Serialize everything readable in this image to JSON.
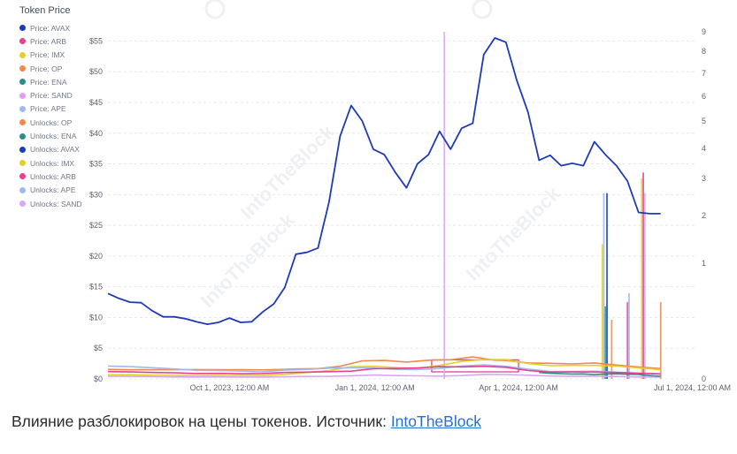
{
  "caption": {
    "text": "Влияние разблокировок на цены токенов. Источник: ",
    "link_text": "IntoTheBlock"
  },
  "watermark": {
    "text": "IntoTheBlock"
  },
  "chart_data": {
    "type": "line",
    "legend_title": "Token Price",
    "legend": [
      {
        "name": "Price: AVAX",
        "color": "#1f3bb3"
      },
      {
        "name": "Price: ARB",
        "color": "#e8408f"
      },
      {
        "name": "Price: IMX",
        "color": "#e3d12a"
      },
      {
        "name": "Price: OP",
        "color": "#f08a4b"
      },
      {
        "name": "Price: ENA",
        "color": "#2a8f8a"
      },
      {
        "name": "Price: SAND",
        "color": "#e39af0"
      },
      {
        "name": "Price: APE",
        "color": "#9fb8f0"
      },
      {
        "name": "Unlocks: OP",
        "color": "#f08a4b"
      },
      {
        "name": "Unlocks: ENA",
        "color": "#2a8f8a"
      },
      {
        "name": "Unlocks: AVAX",
        "color": "#1f3bb3"
      },
      {
        "name": "Unlocks: IMX",
        "color": "#e3d12a"
      },
      {
        "name": "Unlocks: ARB",
        "color": "#e8408f"
      },
      {
        "name": "Unlocks: APE",
        "color": "#9fb8f0"
      },
      {
        "name": "Unlocks: SAND",
        "color": "#d9a6f2"
      }
    ],
    "y_left": {
      "ticks": [
        0,
        5,
        10,
        15,
        20,
        25,
        30,
        35,
        40,
        45,
        50,
        55
      ],
      "tick_labels": [
        "$0",
        "$5",
        "$10",
        "$15",
        "$20",
        "$25",
        "$30",
        "$35",
        "$40",
        "$45",
        "$50",
        "$55"
      ],
      "domain": [
        0,
        56.5
      ]
    },
    "y_right": {
      "ticks": [
        0,
        1,
        2,
        3,
        4,
        5,
        6,
        7,
        8,
        9
      ],
      "tick_labels": [
        "0",
        "1",
        "2",
        "3",
        "4",
        "5",
        "6",
        "7",
        "8",
        "9"
      ],
      "scale": "log",
      "domain": [
        0,
        9
      ]
    },
    "x_axis": {
      "domain": [
        "2023-07-16",
        "2024-07-22"
      ],
      "ticks": [
        "2023-10-01",
        "2024-01-01",
        "2024-04-01",
        "2024-07-01"
      ],
      "tick_labels": [
        "Oct 1, 2023, 12:00 AM",
        "Jan 1, 2024, 12:00 AM",
        "Apr 1, 2024, 12:00 AM",
        "Jul 1, 2024, 12:00 AM"
      ]
    },
    "series": [
      {
        "name": "Price: AVAX",
        "color": "#1f3bb3",
        "width": 1.8,
        "points": [
          [
            "2023-07-16",
            13.9
          ],
          [
            "2023-07-23",
            13.1
          ],
          [
            "2023-07-30",
            12.5
          ],
          [
            "2023-08-06",
            12.4
          ],
          [
            "2023-08-13",
            11.1
          ],
          [
            "2023-08-20",
            10.1
          ],
          [
            "2023-08-27",
            10.1
          ],
          [
            "2023-09-03",
            9.8
          ],
          [
            "2023-09-10",
            9.3
          ],
          [
            "2023-09-17",
            8.9
          ],
          [
            "2023-09-24",
            9.2
          ],
          [
            "2023-10-01",
            9.9
          ],
          [
            "2023-10-08",
            9.2
          ],
          [
            "2023-10-15",
            9.3
          ],
          [
            "2023-10-22",
            10.9
          ],
          [
            "2023-10-29",
            12.2
          ],
          [
            "2023-11-05",
            14.9
          ],
          [
            "2023-11-12",
            20.3
          ],
          [
            "2023-11-19",
            20.6
          ],
          [
            "2023-11-26",
            21.3
          ],
          [
            "2023-12-03",
            28.8
          ],
          [
            "2023-12-10",
            39.5
          ],
          [
            "2023-12-17",
            44.5
          ],
          [
            "2023-12-24",
            42.0
          ],
          [
            "2023-12-31",
            37.4
          ],
          [
            "2024-01-07",
            36.5
          ],
          [
            "2024-01-14",
            33.6
          ],
          [
            "2024-01-21",
            31.1
          ],
          [
            "2024-01-28",
            35.0
          ],
          [
            "2024-02-04",
            36.5
          ],
          [
            "2024-02-11",
            40.3
          ],
          [
            "2024-02-18",
            37.4
          ],
          [
            "2024-02-25",
            40.8
          ],
          [
            "2024-03-03",
            41.6
          ],
          [
            "2024-03-10",
            52.8
          ],
          [
            "2024-03-17",
            55.5
          ],
          [
            "2024-03-24",
            54.8
          ],
          [
            "2024-03-31",
            48.5
          ],
          [
            "2024-04-07",
            43.4
          ],
          [
            "2024-04-14",
            35.6
          ],
          [
            "2024-04-21",
            36.4
          ],
          [
            "2024-04-28",
            34.7
          ],
          [
            "2024-05-05",
            35.1
          ],
          [
            "2024-05-12",
            34.7
          ],
          [
            "2024-05-19",
            38.6
          ],
          [
            "2024-05-26",
            36.5
          ],
          [
            "2024-06-02",
            34.7
          ],
          [
            "2024-06-09",
            32.2
          ],
          [
            "2024-06-16",
            27.1
          ],
          [
            "2024-06-23",
            26.9
          ],
          [
            "2024-06-30",
            26.9
          ]
        ]
      },
      {
        "name": "Price: OP",
        "color": "#f08a4b",
        "width": 1.6,
        "points": [
          [
            "2023-07-16",
            1.55
          ],
          [
            "2023-07-30",
            1.5
          ],
          [
            "2023-08-13",
            1.5
          ],
          [
            "2023-08-27",
            1.49
          ],
          [
            "2023-09-10",
            1.52
          ],
          [
            "2023-09-24",
            1.49
          ],
          [
            "2023-10-08",
            1.51
          ],
          [
            "2023-10-22",
            1.47
          ],
          [
            "2023-11-05",
            1.55
          ],
          [
            "2023-11-12",
            1.62
          ],
          [
            "2023-11-26",
            1.68
          ],
          [
            "2023-12-10",
            2.05
          ],
          [
            "2023-12-24",
            2.95
          ],
          [
            "2024-01-07",
            3.0
          ],
          [
            "2024-01-21",
            2.75
          ],
          [
            "2024-02-04",
            3.05
          ],
          [
            "2024-02-18",
            3.12
          ],
          [
            "2024-03-03",
            3.58
          ],
          [
            "2024-03-17",
            3.05
          ],
          [
            "2024-03-24",
            3.0
          ],
          [
            "2024-04-07",
            2.6
          ],
          [
            "2024-04-21",
            2.55
          ],
          [
            "2024-05-05",
            2.45
          ],
          [
            "2024-05-19",
            2.6
          ],
          [
            "2024-06-02",
            2.25
          ],
          [
            "2024-06-16",
            1.95
          ],
          [
            "2024-06-30",
            1.68
          ]
        ]
      },
      {
        "name": "Price: IMX",
        "color": "#e3d12a",
        "width": 1.6,
        "points": [
          [
            "2023-07-16",
            0.68
          ],
          [
            "2023-07-30",
            0.69
          ],
          [
            "2023-08-13",
            0.59
          ],
          [
            "2023-08-27",
            0.56
          ],
          [
            "2023-09-10",
            0.52
          ],
          [
            "2023-09-24",
            0.56
          ],
          [
            "2023-10-08",
            0.55
          ],
          [
            "2023-10-22",
            0.54
          ],
          [
            "2023-11-05",
            0.74
          ],
          [
            "2023-11-19",
            1.05
          ],
          [
            "2023-12-03",
            1.35
          ],
          [
            "2023-12-17",
            1.98
          ],
          [
            "2023-12-31",
            2.05
          ],
          [
            "2024-01-14",
            1.85
          ],
          [
            "2024-01-28",
            1.7
          ],
          [
            "2024-02-11",
            2.2
          ],
          [
            "2024-02-25",
            2.85
          ],
          [
            "2024-03-10",
            3.15
          ],
          [
            "2024-03-24",
            3.15
          ],
          [
            "2024-04-07",
            2.5
          ],
          [
            "2024-04-21",
            2.15
          ],
          [
            "2024-05-05",
            2.2
          ],
          [
            "2024-05-19",
            2.2
          ],
          [
            "2024-06-02",
            2.08
          ],
          [
            "2024-06-16",
            1.78
          ],
          [
            "2024-06-30",
            1.5
          ]
        ]
      },
      {
        "name": "Price: APE",
        "color": "#9fb8f0",
        "width": 1.6,
        "points": [
          [
            "2023-07-16",
            2.1
          ],
          [
            "2023-07-30",
            2.0
          ],
          [
            "2023-08-13",
            1.82
          ],
          [
            "2023-08-27",
            1.62
          ],
          [
            "2023-09-10",
            1.4
          ],
          [
            "2023-09-24",
            1.35
          ],
          [
            "2023-10-08",
            1.28
          ],
          [
            "2023-10-22",
            1.15
          ],
          [
            "2023-11-05",
            1.42
          ],
          [
            "2023-11-19",
            1.55
          ],
          [
            "2023-12-03",
            1.75
          ],
          [
            "2023-12-17",
            1.8
          ],
          [
            "2023-12-31",
            1.78
          ],
          [
            "2024-01-14",
            1.55
          ],
          [
            "2024-01-28",
            1.52
          ],
          [
            "2024-02-11",
            1.7
          ],
          [
            "2024-02-25",
            2.1
          ],
          [
            "2024-03-10",
            2.3
          ],
          [
            "2024-03-24",
            2.05
          ],
          [
            "2024-04-07",
            1.6
          ],
          [
            "2024-04-21",
            1.22
          ],
          [
            "2024-05-05",
            1.22
          ],
          [
            "2024-05-19",
            1.25
          ],
          [
            "2024-06-02",
            1.1
          ],
          [
            "2024-06-16",
            0.95
          ],
          [
            "2024-06-30",
            0.85
          ]
        ]
      },
      {
        "name": "Price: ARB",
        "color": "#e8408f",
        "width": 1.6,
        "points": [
          [
            "2023-07-16",
            1.2
          ],
          [
            "2023-07-30",
            1.13
          ],
          [
            "2023-08-13",
            1.05
          ],
          [
            "2023-08-27",
            1.01
          ],
          [
            "2023-09-10",
            0.87
          ],
          [
            "2023-09-24",
            0.9
          ],
          [
            "2023-10-08",
            0.83
          ],
          [
            "2023-10-22",
            0.88
          ],
          [
            "2023-11-05",
            1.05
          ],
          [
            "2023-11-19",
            1.1
          ],
          [
            "2023-12-03",
            1.18
          ],
          [
            "2023-12-17",
            1.27
          ],
          [
            "2023-12-31",
            1.65
          ],
          [
            "2024-01-14",
            1.7
          ],
          [
            "2024-01-28",
            1.78
          ],
          [
            "2024-02-11",
            2.0
          ],
          [
            "2024-02-25",
            1.95
          ],
          [
            "2024-03-10",
            2.05
          ],
          [
            "2024-03-24",
            1.9
          ],
          [
            "2024-04-07",
            1.37
          ],
          [
            "2024-04-21",
            1.1
          ],
          [
            "2024-05-05",
            1.13
          ],
          [
            "2024-05-19",
            1.12
          ],
          [
            "2024-06-02",
            1.05
          ],
          [
            "2024-06-16",
            0.92
          ],
          [
            "2024-06-30",
            0.81
          ]
        ]
      },
      {
        "name": "Price: SAND",
        "color": "#d9a6f2",
        "width": 1.6,
        "points": [
          [
            "2023-07-16",
            0.43
          ],
          [
            "2023-07-30",
            0.41
          ],
          [
            "2023-08-13",
            0.36
          ],
          [
            "2023-08-27",
            0.32
          ],
          [
            "2023-09-10",
            0.31
          ],
          [
            "2023-09-24",
            0.31
          ],
          [
            "2023-10-08",
            0.3
          ],
          [
            "2023-10-22",
            0.3
          ],
          [
            "2023-11-05",
            0.35
          ],
          [
            "2023-11-19",
            0.4
          ],
          [
            "2023-12-03",
            0.42
          ],
          [
            "2023-12-17",
            0.52
          ],
          [
            "2023-12-31",
            0.63
          ],
          [
            "2024-01-14",
            0.55
          ],
          [
            "2024-01-28",
            0.5
          ],
          [
            "2024-02-11",
            0.46
          ],
          [
            "2024-02-25",
            0.55
          ],
          [
            "2024-03-10",
            0.74
          ],
          [
            "2024-03-24",
            0.72
          ],
          [
            "2024-04-07",
            0.61
          ],
          [
            "2024-04-21",
            0.47
          ],
          [
            "2024-05-05",
            0.45
          ],
          [
            "2024-05-19",
            0.44
          ],
          [
            "2024-06-02",
            0.4
          ],
          [
            "2024-06-16",
            0.32
          ],
          [
            "2024-06-30",
            0.29
          ]
        ]
      },
      {
        "name": "Price: ENA",
        "color": "#2a8f8a",
        "width": 1.6,
        "points": [
          [
            "2024-04-14",
            1.05
          ],
          [
            "2024-04-21",
            0.92
          ],
          [
            "2024-04-28",
            0.85
          ],
          [
            "2024-05-05",
            0.8
          ],
          [
            "2024-05-12",
            0.82
          ],
          [
            "2024-05-19",
            0.7
          ],
          [
            "2024-05-26",
            0.8
          ],
          [
            "2024-06-02",
            0.83
          ],
          [
            "2024-06-09",
            0.76
          ],
          [
            "2024-06-16",
            0.72
          ],
          [
            "2024-06-23",
            0.55
          ],
          [
            "2024-06-30",
            0.43
          ]
        ]
      }
    ],
    "unlocks": [
      {
        "name": "Unlocks: SAND",
        "color": "#d9a6f2",
        "date": "2024-02-14",
        "value": 9.0
      },
      {
        "name": "Unlocks: IMX",
        "color": "#e3d12a",
        "date": "2024-05-24",
        "value": 1.4
      },
      {
        "name": "Unlocks: APE",
        "color": "#9fb8f0",
        "date": "2024-05-25",
        "value": 2.6
      },
      {
        "name": "Unlocks: ENA",
        "color": "#2a8f8a",
        "date": "2024-05-26",
        "value": 0.36
      },
      {
        "name": "Unlocks: AVAX",
        "color": "#1f3bb3",
        "date": "2024-05-27",
        "value": 2.6
      },
      {
        "name": "Unlocks: OP",
        "color": "#f08a4b",
        "date": "2024-05-30",
        "value": 0.25
      },
      {
        "name": "Unlocks: ARB",
        "color": "#e8408f",
        "date": "2024-06-09",
        "value": 0.4
      },
      {
        "name": "Unlocks: APE",
        "color": "#9fb8f0",
        "date": "2024-06-10",
        "value": 0.5
      },
      {
        "name": "Unlocks: IMX",
        "color": "#e3d12a",
        "date": "2024-06-18",
        "value": 3.0
      },
      {
        "name": "Unlocks: ARB",
        "color": "#e8408f",
        "date": "2024-06-19",
        "value": 3.2
      },
      {
        "name": "Unlocks: SAND",
        "color": "#d9a6f2",
        "date": "2024-06-20",
        "value": 2.6
      },
      {
        "name": "Unlocks: OP",
        "color": "#f08a4b",
        "date": "2024-06-30",
        "value": 0.4
      }
    ],
    "highlight_box": {
      "color": "#e8408f",
      "x_range": [
        "2024-02-06",
        "2024-04-01"
      ],
      "y_range": [
        1.15,
        3.1
      ]
    },
    "grid": true,
    "legend_position": "top-left"
  }
}
